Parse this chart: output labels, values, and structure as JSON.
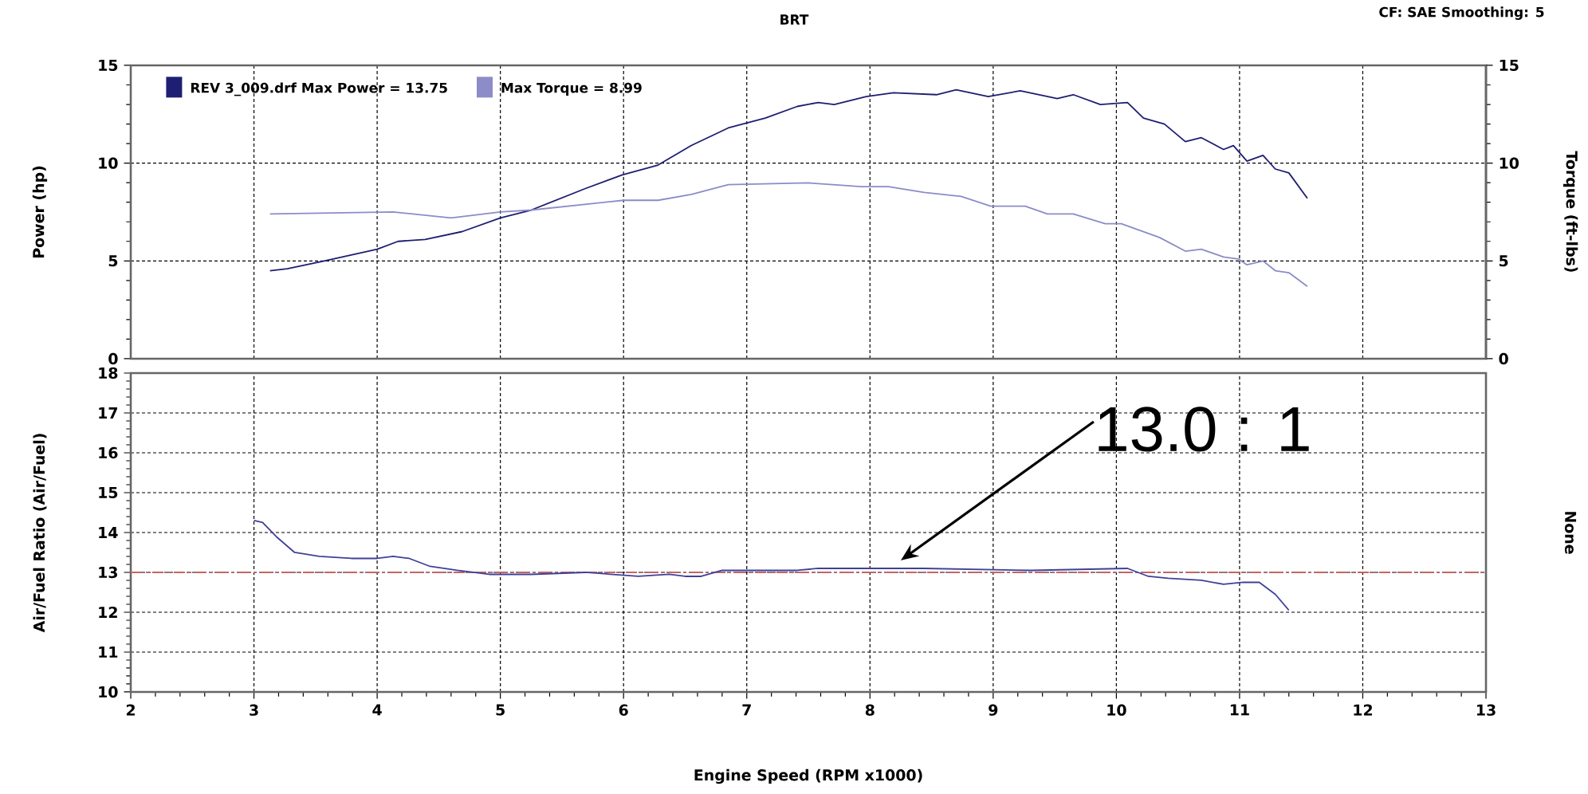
{
  "chart_data": [
    {
      "type": "line",
      "title": "BRT",
      "annotations": [
        "CF: SAE Smoothing: 5"
      ],
      "ylabel": "Power (hp)",
      "y2label": "Torque (ft-lbs)",
      "xlim": [
        2,
        13
      ],
      "xticks": [
        2,
        3,
        4,
        5,
        6,
        7,
        8,
        9,
        10,
        11,
        12,
        13
      ],
      "ylim": [
        0,
        15
      ],
      "yticks": [
        0,
        5,
        10,
        15
      ],
      "y2lim": [
        0,
        15
      ],
      "y2ticks": [
        0,
        5,
        10,
        15
      ],
      "tick_labels": "y",
      "grid": true,
      "legend": "top left",
      "series": [
        {
          "name": "REV 3_009.drf Max Power = 13.75",
          "color": "#1e1e72",
          "x": [
            3.13,
            3.27,
            3.57,
            4.0,
            4.17,
            4.39,
            4.69,
            5.0,
            5.25,
            5.69,
            5.99,
            6.28,
            6.55,
            6.85,
            7.15,
            7.41,
            7.58,
            7.71,
            7.97,
            8.19,
            8.54,
            8.7,
            8.96,
            9.22,
            9.52,
            9.65,
            9.87,
            10.09,
            10.22,
            10.39,
            10.56,
            10.69,
            10.87,
            10.95,
            11.06,
            11.19,
            11.29,
            11.4,
            11.55
          ],
          "values": [
            4.5,
            4.6,
            5.0,
            5.6,
            6.0,
            6.1,
            6.5,
            7.2,
            7.6,
            8.7,
            9.4,
            9.9,
            10.9,
            11.8,
            12.3,
            12.9,
            13.1,
            13.0,
            13.4,
            13.6,
            13.5,
            13.75,
            13.4,
            13.7,
            13.3,
            13.5,
            13.0,
            13.1,
            12.3,
            12.0,
            11.1,
            11.3,
            10.7,
            10.9,
            10.1,
            10.4,
            9.7,
            9.5,
            8.2
          ]
        },
        {
          "name": "Max Torque = 8.99",
          "color": "#8c8cc8",
          "axis": "y2",
          "x": [
            3.13,
            4.13,
            4.6,
            5.0,
            5.25,
            6.0,
            6.28,
            6.55,
            6.85,
            7.5,
            7.93,
            8.15,
            8.44,
            8.74,
            8.98,
            9.26,
            9.44,
            9.65,
            9.91,
            10.04,
            10.35,
            10.56,
            10.69,
            10.87,
            10.99,
            11.06,
            11.19,
            11.29,
            11.4,
            11.55
          ],
          "values": [
            7.4,
            7.5,
            7.2,
            7.5,
            7.6,
            8.1,
            8.1,
            8.4,
            8.9,
            8.99,
            8.8,
            8.8,
            8.5,
            8.3,
            7.8,
            7.8,
            7.4,
            7.4,
            6.9,
            6.9,
            6.2,
            5.5,
            5.6,
            5.2,
            5.1,
            4.8,
            5.0,
            4.5,
            4.4,
            3.7
          ]
        }
      ]
    },
    {
      "type": "line",
      "xlabel": "Engine Speed (RPM x1000)",
      "ylabel": "Air/Fuel Ratio (Air/Fuel)",
      "y2label": "None",
      "xlim": [
        2,
        13
      ],
      "xticks": [
        2,
        3,
        4,
        5,
        6,
        7,
        8,
        9,
        10,
        11,
        12,
        13
      ],
      "ylim": [
        10,
        18
      ],
      "yticks": [
        10,
        11,
        12,
        13,
        14,
        15,
        16,
        17,
        18
      ],
      "grid": true,
      "series": [
        {
          "color": "#40409a",
          "x": [
            3.0,
            3.07,
            3.18,
            3.33,
            3.53,
            3.79,
            4.0,
            4.13,
            4.26,
            4.43,
            4.65,
            4.91,
            5.25,
            5.69,
            6.12,
            6.37,
            6.5,
            6.63,
            6.8,
            7.41,
            7.58,
            8.44,
            9.31,
            10.09,
            10.26,
            10.42,
            10.69,
            10.87,
            11.03,
            11.16,
            11.29,
            11.4
          ],
          "values": [
            14.3,
            14.25,
            13.9,
            13.5,
            13.4,
            13.35,
            13.35,
            13.4,
            13.35,
            13.15,
            13.05,
            12.95,
            12.95,
            13.0,
            12.9,
            12.95,
            12.9,
            12.9,
            13.05,
            13.05,
            13.1,
            13.1,
            13.05,
            13.1,
            12.9,
            12.85,
            12.8,
            12.7,
            12.75,
            12.75,
            12.45,
            12.05
          ]
        }
      ],
      "ref_lines": [
        {
          "axis": "y",
          "value": 13,
          "color": "#c86464",
          "line_style": "dashdot"
        }
      ],
      "annotations": [
        {
          "text": "13.0 : 1",
          "x": 8.25,
          "y": 13.3
        }
      ]
    }
  ]
}
